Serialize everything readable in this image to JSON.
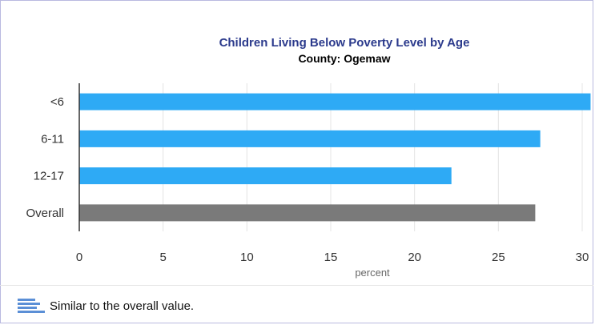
{
  "chart_data": {
    "type": "bar",
    "orientation": "horizontal",
    "title": "Children Living Below Poverty Level by Age",
    "subtitle": "County: Ogemaw",
    "categories": [
      "<6",
      "6-11",
      "12-17",
      "Overall"
    ],
    "values": [
      30.5,
      27.5,
      22.2,
      27.2
    ],
    "bar_colors": [
      "#2eaaf5",
      "#2eaaf5",
      "#2eaaf5",
      "#7a7a7a"
    ],
    "xlabel": "percent",
    "ylabel": "",
    "xlim": [
      0,
      30
    ],
    "xticks": [
      "0",
      "5",
      "10",
      "15",
      "20",
      "25",
      "30"
    ],
    "grid": true
  },
  "legend": {
    "label": "Similar to the overall value.",
    "swatch_color": "#5b8fd6"
  }
}
